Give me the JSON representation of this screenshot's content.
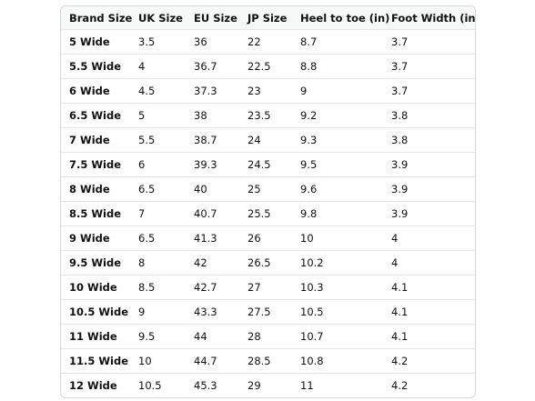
{
  "table": {
    "header": [
      "Brand Size",
      "UK Size",
      "EU Size",
      "JP Size",
      "Heel to toe (in)",
      "Foot Width (in)"
    ],
    "rows": [
      [
        "5 Wide",
        "3.5",
        "36",
        "22",
        "8.7",
        "3.7"
      ],
      [
        "5.5 Wide",
        "4",
        "36.7",
        "22.5",
        "8.8",
        "3.7"
      ],
      [
        "6 Wide",
        "4.5",
        "37.3",
        "23",
        "9",
        "3.7"
      ],
      [
        "6.5 Wide",
        "5",
        "38",
        "23.5",
        "9.2",
        "3.8"
      ],
      [
        "7 Wide",
        "5.5",
        "38.7",
        "24",
        "9.3",
        "3.8"
      ],
      [
        "7.5 Wide",
        "6",
        "39.3",
        "24.5",
        "9.5",
        "3.9"
      ],
      [
        "8 Wide",
        "6.5",
        "40",
        "25",
        "9.6",
        "3.9"
      ],
      [
        "8.5 Wide",
        "7",
        "40.7",
        "25.5",
        "9.8",
        "3.9"
      ],
      [
        "9 Wide",
        "6.5",
        "41.3",
        "26",
        "10",
        "4"
      ],
      [
        "9.5 Wide",
        "8",
        "42",
        "26.5",
        "10.2",
        "4"
      ],
      [
        "10 Wide",
        "8.5",
        "42.7",
        "27",
        "10.3",
        "4.1"
      ],
      [
        "10.5 Wide",
        "9",
        "43.3",
        "27.5",
        "10.5",
        "4.1"
      ],
      [
        "11 Wide",
        "9.5",
        "44",
        "28",
        "10.7",
        "4.1"
      ],
      [
        "11.5 Wide",
        "10",
        "44.7",
        "28.5",
        "10.8",
        "4.2"
      ],
      [
        "12 Wide",
        "10.5",
        "45.3",
        "29",
        "11",
        "4.2"
      ]
    ]
  }
}
